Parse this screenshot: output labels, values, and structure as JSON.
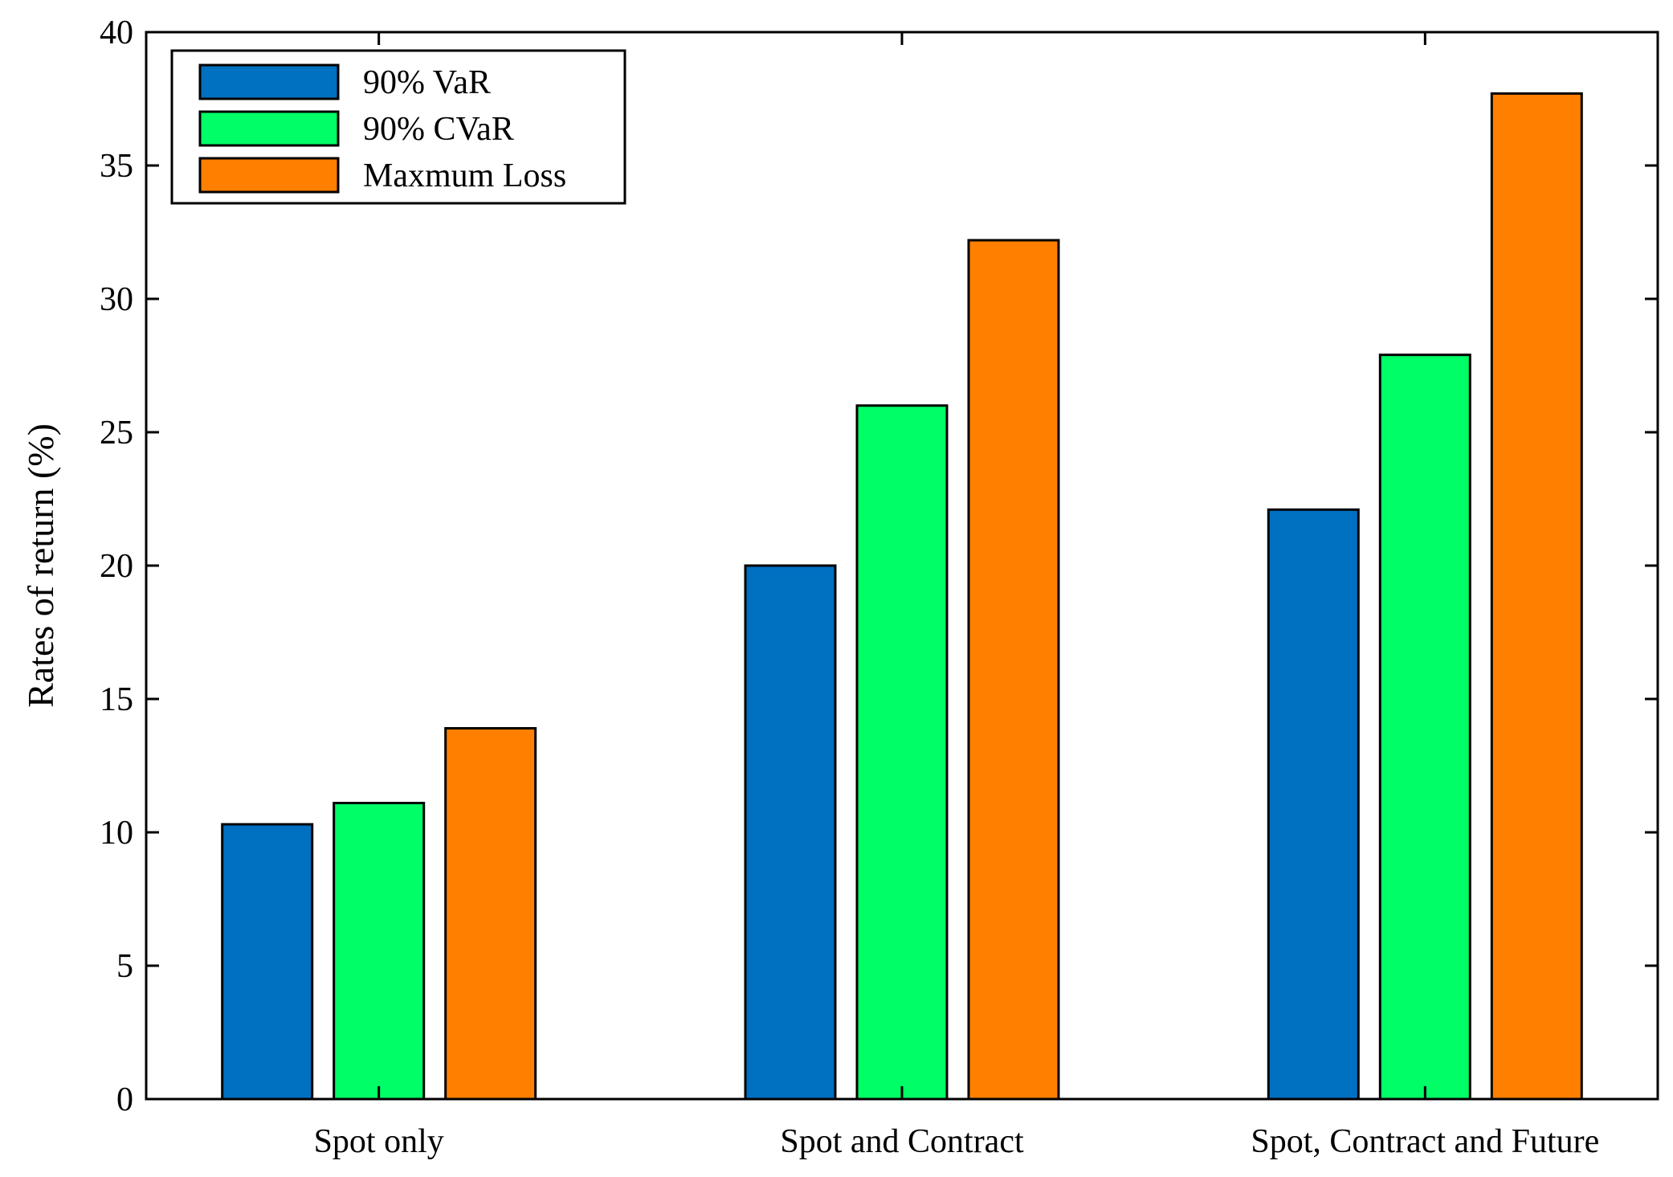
{
  "chart_data": {
    "type": "bar",
    "title": "",
    "xlabel": "",
    "ylabel": "Rates of return (%)",
    "ylim": [
      0,
      40
    ],
    "yticks": [
      0,
      5,
      10,
      15,
      20,
      25,
      30,
      35,
      40
    ],
    "ytick_labels": [
      "0",
      "5",
      "10",
      "15",
      "20",
      "25",
      "30",
      "35",
      "40"
    ],
    "categories": [
      "Spot only",
      "Spot and Contract",
      "Spot, Contract and Future"
    ],
    "series": [
      {
        "name": "90% VaR",
        "color": "#0070c0",
        "values": [
          10.3,
          20.0,
          22.1
        ]
      },
      {
        "name": "90% CVaR",
        "color": "#00ff66",
        "values": [
          11.1,
          26.0,
          27.9
        ]
      },
      {
        "name": "Maxmum Loss",
        "color": "#ff7f00",
        "values": [
          13.9,
          32.2,
          37.7
        ]
      }
    ],
    "legend_position": "top-left",
    "grid": false
  }
}
